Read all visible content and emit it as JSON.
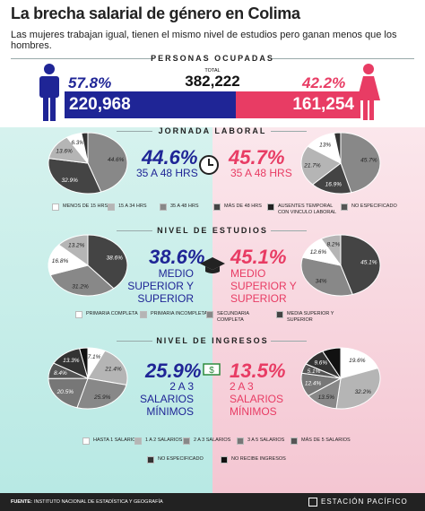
{
  "title": "La brecha salarial de género en Colima",
  "subtitle": "Las mujeres trabajan igual, tienen el mismo nivel de estudios pero ganan menos que los hombres.",
  "colors": {
    "men": "#1f2596",
    "women": "#e83c64",
    "dark": "#444444",
    "mid": "#888888",
    "light": "#b5b5b5",
    "white": "#ffffff"
  },
  "ocupadas": {
    "heading": "PERSONAS OCUPADAS",
    "total_label": "TOTAL",
    "total": "382,222",
    "men_pct": "57.8%",
    "women_pct": "42.2%",
    "men": "220,968",
    "women": "161,254",
    "men_share": 0.578
  },
  "jornada": {
    "heading": "JORNADA LABORAL",
    "men": {
      "pct": "44.6%",
      "label": "35 A 48 HRS",
      "slices": [
        {
          "v": 44.6,
          "c": "#888888",
          "t": "44.6%"
        },
        {
          "v": 32.9,
          "c": "#444444",
          "t": "32.9%"
        },
        {
          "v": 13.6,
          "c": "#b5b5b5",
          "t": "13.6%"
        },
        {
          "v": 6.3,
          "c": "#ffffff",
          "t": "6.3%"
        },
        {
          "v": 2.6,
          "c": "#333333",
          "t": ""
        }
      ]
    },
    "women": {
      "pct": "45.7%",
      "label": "35 A 48 HRS",
      "slices": [
        {
          "v": 45.7,
          "c": "#888888",
          "t": "45.7%"
        },
        {
          "v": 16.9,
          "c": "#444444",
          "t": "16.9%"
        },
        {
          "v": 21.7,
          "c": "#b5b5b5",
          "t": "21.7%"
        },
        {
          "v": 13.0,
          "c": "#ffffff",
          "t": "13%"
        },
        {
          "v": 2.7,
          "c": "#333333",
          "t": ""
        }
      ]
    },
    "legend": [
      "MENOS DE 15 HRS",
      "15 A 34 HRS",
      "35 A 48 HRS",
      "MÁS DE 48 HRS",
      "AUSENTES TEMPORAL CON VINCULO LABORAL",
      "NO ESPECIFICADO"
    ]
  },
  "estudios": {
    "heading": "NIVEL DE ESTUDIOS",
    "men": {
      "pct": "38.6%",
      "label": "MEDIO SUPERIOR Y SUPERIOR",
      "slices": [
        {
          "v": 38.6,
          "c": "#444444",
          "t": "38.6%"
        },
        {
          "v": 31.2,
          "c": "#888888",
          "t": "31.2%"
        },
        {
          "v": 16.8,
          "c": "#ffffff",
          "t": "16.8%"
        },
        {
          "v": 13.2,
          "c": "#b5b5b5",
          "t": "13.2%"
        }
      ]
    },
    "women": {
      "pct": "45.1%",
      "label": "MEDIO SUPERIOR Y SUPERIOR",
      "slices": [
        {
          "v": 45.1,
          "c": "#444444",
          "t": "45.1%"
        },
        {
          "v": 34.0,
          "c": "#888888",
          "t": "34%"
        },
        {
          "v": 12.6,
          "c": "#ffffff",
          "t": "12.6%"
        },
        {
          "v": 8.2,
          "c": "#b5b5b5",
          "t": "8.2%"
        }
      ]
    },
    "legend": [
      "PRIMARIA COMPLETA",
      "PRIMARIA INCOMPLETA",
      "SECUNDARIA COMPLETA",
      "MEDIA SUPERIOR Y SUPERIOR"
    ]
  },
  "ingresos": {
    "heading": "NIVEL DE INGRESOS",
    "men": {
      "pct": "25.9%",
      "label": "2 A 3 SALARIOS MÍNIMOS",
      "slices": [
        {
          "v": 7.1,
          "c": "#ffffff",
          "t": "7.1%"
        },
        {
          "v": 21.4,
          "c": "#b5b5b5",
          "t": "21.4%"
        },
        {
          "v": 25.9,
          "c": "#888888",
          "t": "25.9%"
        },
        {
          "v": 20.5,
          "c": "#777777",
          "t": "20.5%"
        },
        {
          "v": 8.4,
          "c": "#555555",
          "t": "8.4%"
        },
        {
          "v": 13.3,
          "c": "#333333",
          "t": "13.3%"
        },
        {
          "v": 3.4,
          "c": "#111111",
          "t": ""
        }
      ]
    },
    "women": {
      "pct": "13.5%",
      "label": "2 A 3 SALARIOS MÍNIMOS",
      "slices": [
        {
          "v": 19.6,
          "c": "#ffffff",
          "t": "19.6%"
        },
        {
          "v": 32.2,
          "c": "#b5b5b5",
          "t": "32.2%"
        },
        {
          "v": 13.5,
          "c": "#888888",
          "t": "13.5%"
        },
        {
          "v": 12.4,
          "c": "#777777",
          "t": "12.4%"
        },
        {
          "v": 5.1,
          "c": "#555555",
          "t": "5.1%"
        },
        {
          "v": 9.6,
          "c": "#333333",
          "t": "9.6%"
        },
        {
          "v": 7.6,
          "c": "#111111",
          "t": ""
        }
      ]
    },
    "legend": [
      "HASTA 1 SALARIO",
      "1 A 2 SALARIOS",
      "2 A 3 SALARIOS",
      "3 A 5 SALARIOS",
      "MÁS DE 5 SALARIOS",
      "NO ESPECIFICADO",
      "NO RECIBE INGRESOS"
    ]
  },
  "footer": {
    "source_label": "FUENTE:",
    "source": "INSTITUTO NACIONAL DE ESTADÍSTICA Y GEOGRAFÍA",
    "brand": "ESTACIÓN PACÍFICO"
  }
}
